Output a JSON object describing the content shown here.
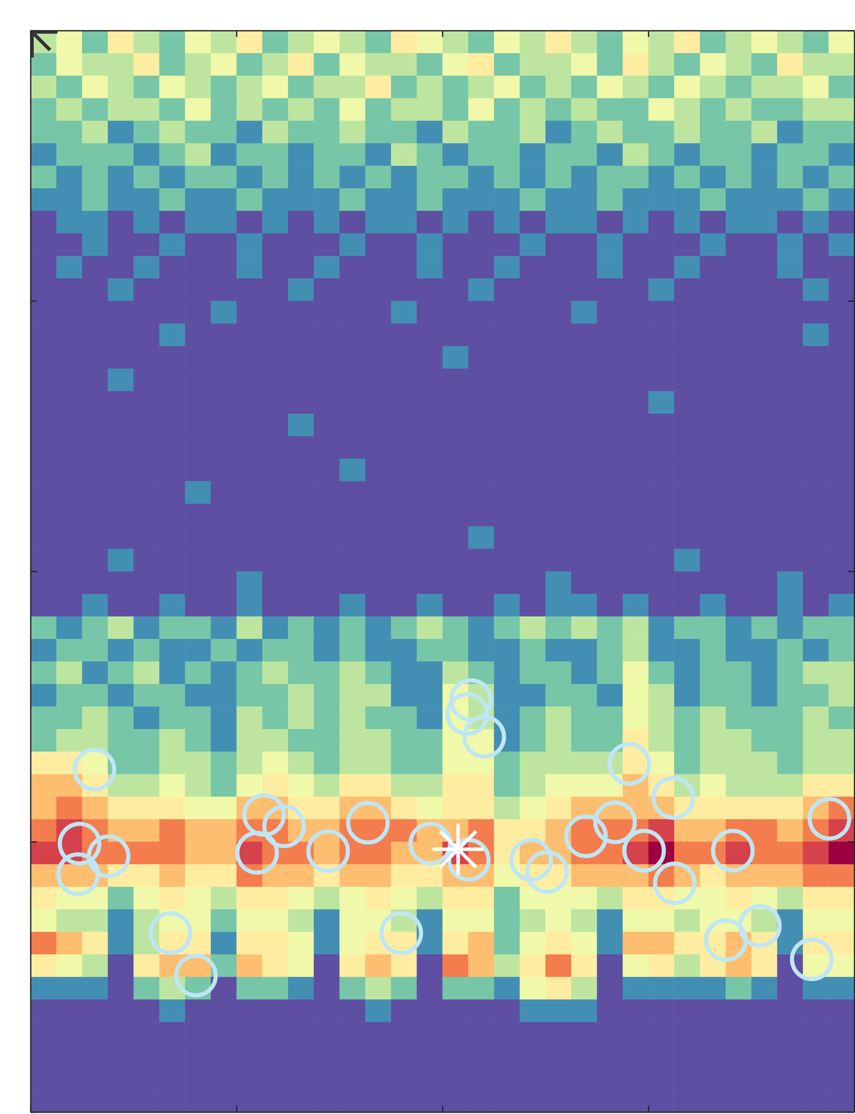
{
  "chart_data": {
    "type": "heatmap",
    "xlim": [
      0,
      4
    ],
    "ylim": [
      0,
      4
    ],
    "xticks": [
      0,
      1,
      2,
      3,
      4
    ],
    "yticks": [
      0,
      1,
      2,
      3,
      4
    ],
    "tick_labels": false,
    "zlim": [
      0,
      9
    ],
    "z": [
      [
        3,
        4,
        2,
        5,
        3,
        2,
        4,
        3,
        5,
        2,
        3,
        4,
        3,
        2,
        5,
        4,
        3,
        2,
        4,
        3,
        5,
        3,
        2,
        4,
        3,
        5,
        2,
        3,
        4,
        3,
        2,
        4
      ],
      [
        2,
        4,
        3,
        3,
        5,
        2,
        3,
        4,
        2,
        3,
        5,
        2,
        4,
        3,
        3,
        2,
        4,
        5,
        2,
        3,
        3,
        4,
        2,
        5,
        3,
        2,
        4,
        3,
        2,
        5,
        3,
        3
      ],
      [
        3,
        2,
        4,
        3,
        2,
        4,
        3,
        2,
        3,
        4,
        2,
        3,
        3,
        5,
        2,
        3,
        2,
        3,
        4,
        2,
        3,
        2,
        4,
        3,
        2,
        4,
        3,
        2,
        3,
        3,
        4,
        2
      ],
      [
        2,
        3,
        2,
        3,
        3,
        2,
        4,
        2,
        3,
        2,
        3,
        2,
        4,
        2,
        3,
        3,
        2,
        4,
        2,
        3,
        2,
        3,
        2,
        2,
        4,
        3,
        2,
        3,
        2,
        2,
        3,
        3
      ],
      [
        2,
        2,
        3,
        1,
        2,
        3,
        2,
        2,
        1,
        3,
        2,
        2,
        3,
        2,
        2,
        1,
        3,
        2,
        2,
        3,
        1,
        2,
        3,
        2,
        2,
        3,
        2,
        2,
        3,
        1,
        2,
        2
      ],
      [
        1,
        2,
        2,
        2,
        1,
        2,
        3,
        1,
        2,
        2,
        1,
        2,
        2,
        1,
        3,
        2,
        1,
        2,
        2,
        1,
        2,
        2,
        1,
        3,
        2,
        1,
        2,
        2,
        1,
        2,
        2,
        1
      ],
      [
        2,
        1,
        2,
        1,
        2,
        1,
        2,
        2,
        1,
        2,
        1,
        2,
        1,
        2,
        1,
        2,
        2,
        1,
        2,
        1,
        2,
        1,
        2,
        2,
        1,
        2,
        1,
        2,
        1,
        2,
        1,
        2
      ],
      [
        1,
        1,
        2,
        1,
        1,
        2,
        1,
        1,
        2,
        1,
        1,
        1,
        2,
        1,
        1,
        2,
        1,
        1,
        1,
        2,
        1,
        1,
        2,
        1,
        1,
        1,
        2,
        1,
        1,
        1,
        2,
        1
      ],
      [
        0,
        1,
        1,
        0,
        1,
        0,
        1,
        1,
        0,
        1,
        0,
        1,
        0,
        1,
        1,
        0,
        1,
        0,
        1,
        0,
        1,
        1,
        0,
        1,
        0,
        1,
        0,
        1,
        1,
        0,
        1,
        0
      ],
      [
        0,
        0,
        1,
        0,
        0,
        1,
        0,
        0,
        1,
        0,
        0,
        0,
        1,
        0,
        0,
        1,
        0,
        0,
        0,
        1,
        0,
        0,
        1,
        0,
        0,
        0,
        1,
        0,
        0,
        1,
        0,
        1
      ],
      [
        0,
        1,
        0,
        0,
        1,
        0,
        0,
        0,
        1,
        0,
        0,
        1,
        0,
        0,
        0,
        1,
        0,
        0,
        1,
        0,
        0,
        0,
        1,
        0,
        0,
        1,
        0,
        0,
        0,
        1,
        0,
        0
      ],
      [
        0,
        0,
        0,
        1,
        0,
        0,
        0,
        0,
        0,
        0,
        1,
        0,
        0,
        0,
        0,
        0,
        0,
        1,
        0,
        0,
        0,
        0,
        0,
        0,
        1,
        0,
        0,
        0,
        0,
        0,
        1,
        0
      ],
      [
        0,
        0,
        0,
        0,
        0,
        0,
        0,
        1,
        0,
        0,
        0,
        0,
        0,
        0,
        1,
        0,
        0,
        0,
        0,
        0,
        0,
        1,
        0,
        0,
        0,
        0,
        0,
        0,
        0,
        0,
        0,
        0
      ],
      [
        0,
        0,
        0,
        0,
        0,
        1,
        0,
        0,
        0,
        0,
        0,
        0,
        0,
        0,
        0,
        0,
        0,
        0,
        0,
        0,
        0,
        0,
        0,
        0,
        0,
        0,
        0,
        0,
        0,
        0,
        1,
        0
      ],
      [
        0,
        0,
        0,
        0,
        0,
        0,
        0,
        0,
        0,
        0,
        0,
        0,
        0,
        0,
        0,
        0,
        1,
        0,
        0,
        0,
        0,
        0,
        0,
        0,
        0,
        0,
        0,
        0,
        0,
        0,
        0,
        0
      ],
      [
        0,
        0,
        0,
        1,
        0,
        0,
        0,
        0,
        0,
        0,
        0,
        0,
        0,
        0,
        0,
        0,
        0,
        0,
        0,
        0,
        0,
        0,
        0,
        0,
        0,
        0,
        0,
        0,
        0,
        0,
        0,
        0
      ],
      [
        0,
        0,
        0,
        0,
        0,
        0,
        0,
        0,
        0,
        0,
        0,
        0,
        0,
        0,
        0,
        0,
        0,
        0,
        0,
        0,
        0,
        0,
        0,
        0,
        1,
        0,
        0,
        0,
        0,
        0,
        0,
        0
      ],
      [
        0,
        0,
        0,
        0,
        0,
        0,
        0,
        0,
        0,
        0,
        1,
        0,
        0,
        0,
        0,
        0,
        0,
        0,
        0,
        0,
        0,
        0,
        0,
        0,
        0,
        0,
        0,
        0,
        0,
        0,
        0,
        0
      ],
      [
        0,
        0,
        0,
        0,
        0,
        0,
        0,
        0,
        0,
        0,
        0,
        0,
        0,
        0,
        0,
        0,
        0,
        0,
        0,
        0,
        0,
        0,
        0,
        0,
        0,
        0,
        0,
        0,
        0,
        0,
        0,
        0
      ],
      [
        0,
        0,
        0,
        0,
        0,
        0,
        0,
        0,
        0,
        0,
        0,
        0,
        1,
        0,
        0,
        0,
        0,
        0,
        0,
        0,
        0,
        0,
        0,
        0,
        0,
        0,
        0,
        0,
        0,
        0,
        0,
        0
      ],
      [
        0,
        0,
        0,
        0,
        0,
        0,
        1,
        0,
        0,
        0,
        0,
        0,
        0,
        0,
        0,
        0,
        0,
        0,
        0,
        0,
        0,
        0,
        0,
        0,
        0,
        0,
        0,
        0,
        0,
        0,
        0,
        0
      ],
      [
        0,
        0,
        0,
        0,
        0,
        0,
        0,
        0,
        0,
        0,
        0,
        0,
        0,
        0,
        0,
        0,
        0,
        0,
        0,
        0,
        0,
        0,
        0,
        0,
        0,
        0,
        0,
        0,
        0,
        0,
        0,
        0
      ],
      [
        0,
        0,
        0,
        0,
        0,
        0,
        0,
        0,
        0,
        0,
        0,
        0,
        0,
        0,
        0,
        0,
        0,
        1,
        0,
        0,
        0,
        0,
        0,
        0,
        0,
        0,
        0,
        0,
        0,
        0,
        0,
        0
      ],
      [
        0,
        0,
        0,
        1,
        0,
        0,
        0,
        0,
        0,
        0,
        0,
        0,
        0,
        0,
        0,
        0,
        0,
        0,
        0,
        0,
        0,
        0,
        0,
        0,
        0,
        1,
        0,
        0,
        0,
        0,
        0,
        0
      ],
      [
        0,
        0,
        0,
        0,
        0,
        0,
        0,
        0,
        1,
        0,
        0,
        0,
        0,
        0,
        0,
        0,
        0,
        0,
        0,
        0,
        1,
        0,
        0,
        0,
        0,
        0,
        0,
        0,
        0,
        1,
        0,
        0
      ],
      [
        0,
        0,
        1,
        0,
        0,
        1,
        0,
        0,
        1,
        0,
        0,
        0,
        1,
        0,
        0,
        1,
        0,
        0,
        1,
        0,
        1,
        1,
        0,
        1,
        0,
        0,
        1,
        0,
        0,
        1,
        0,
        1
      ],
      [
        2,
        1,
        2,
        3,
        1,
        2,
        2,
        1,
        3,
        1,
        2,
        1,
        2,
        1,
        2,
        3,
        2,
        1,
        2,
        3,
        2,
        3,
        2,
        3,
        1,
        2,
        2,
        1,
        2,
        1,
        2,
        2
      ],
      [
        1,
        2,
        2,
        1,
        2,
        1,
        1,
        2,
        1,
        2,
        2,
        1,
        2,
        1,
        1,
        2,
        2,
        1,
        1,
        2,
        1,
        1,
        2,
        3,
        1,
        1,
        2,
        1,
        1,
        2,
        1,
        2
      ],
      [
        2,
        3,
        1,
        2,
        3,
        1,
        2,
        1,
        2,
        3,
        2,
        2,
        3,
        2,
        1,
        1,
        3,
        2,
        1,
        2,
        2,
        1,
        2,
        4,
        2,
        1,
        2,
        2,
        1,
        2,
        3,
        3
      ],
      [
        1,
        2,
        2,
        1,
        2,
        2,
        1,
        1,
        2,
        2,
        3,
        2,
        3,
        3,
        1,
        1,
        4,
        3,
        1,
        1,
        2,
        2,
        1,
        4,
        3,
        1,
        2,
        2,
        1,
        2,
        2,
        3
      ],
      [
        2,
        2,
        3,
        2,
        1,
        2,
        2,
        1,
        3,
        2,
        3,
        2,
        3,
        2,
        2,
        1,
        4,
        3,
        1,
        2,
        3,
        2,
        2,
        4,
        3,
        2,
        3,
        2,
        2,
        2,
        3,
        2
      ],
      [
        2,
        3,
        3,
        2,
        2,
        3,
        2,
        1,
        3,
        3,
        2,
        2,
        3,
        3,
        2,
        2,
        4,
        4,
        1,
        2,
        3,
        2,
        2,
        5,
        3,
        2,
        3,
        3,
        2,
        2,
        3,
        3
      ],
      [
        5,
        5,
        4,
        2,
        2,
        3,
        3,
        2,
        3,
        4,
        3,
        2,
        3,
        3,
        2,
        2,
        4,
        4,
        2,
        3,
        3,
        3,
        3,
        5,
        4,
        2,
        3,
        3,
        3,
        2,
        3,
        3
      ],
      [
        6,
        6,
        5,
        3,
        3,
        4,
        3,
        2,
        4,
        5,
        4,
        3,
        5,
        5,
        3,
        3,
        5,
        5,
        2,
        3,
        4,
        4,
        4,
        6,
        5,
        3,
        4,
        3,
        3,
        3,
        5,
        5
      ],
      [
        6,
        7,
        6,
        5,
        5,
        5,
        4,
        4,
        6,
        6,
        5,
        5,
        6,
        6,
        5,
        4,
        5,
        5,
        3,
        4,
        5,
        6,
        6,
        6,
        6,
        5,
        5,
        5,
        5,
        5,
        6,
        7
      ],
      [
        7,
        8,
        7,
        6,
        6,
        7,
        6,
        6,
        7,
        7,
        6,
        6,
        7,
        7,
        7,
        6,
        6,
        7,
        5,
        5,
        6,
        7,
        7,
        7,
        8,
        6,
        6,
        7,
        7,
        6,
        7,
        8
      ],
      [
        8,
        8,
        7,
        7,
        7,
        7,
        6,
        6,
        8,
        7,
        7,
        6,
        7,
        7,
        6,
        6,
        8,
        7,
        5,
        6,
        6,
        7,
        7,
        8,
        9,
        7,
        7,
        8,
        7,
        7,
        8,
        9
      ],
      [
        6,
        6,
        6,
        5,
        5,
        6,
        5,
        5,
        7,
        6,
        6,
        5,
        6,
        6,
        5,
        5,
        6,
        6,
        4,
        5,
        5,
        6,
        6,
        6,
        7,
        6,
        5,
        6,
        6,
        6,
        7,
        7
      ],
      [
        5,
        4,
        4,
        2,
        4,
        5,
        4,
        3,
        5,
        5,
        4,
        3,
        4,
        5,
        4,
        3,
        5,
        5,
        2,
        4,
        4,
        4,
        3,
        5,
        5,
        4,
        4,
        5,
        4,
        3,
        5,
        5
      ],
      [
        4,
        3,
        3,
        1,
        3,
        4,
        4,
        2,
        4,
        4,
        3,
        1,
        4,
        4,
        3,
        1,
        4,
        4,
        2,
        3,
        4,
        3,
        1,
        4,
        4,
        3,
        4,
        4,
        3,
        1,
        4,
        4
      ],
      [
        7,
        6,
        5,
        1,
        3,
        5,
        5,
        1,
        5,
        5,
        4,
        1,
        4,
        5,
        5,
        1,
        5,
        6,
        2,
        4,
        5,
        4,
        1,
        6,
        6,
        5,
        5,
        6,
        5,
        1,
        5,
        5
      ],
      [
        5,
        4,
        3,
        0,
        5,
        6,
        6,
        2,
        6,
        5,
        4,
        0,
        5,
        6,
        5,
        0,
        7,
        6,
        3,
        5,
        7,
        5,
        0,
        4,
        5,
        3,
        5,
        6,
        5,
        0,
        4,
        4
      ],
      [
        1,
        1,
        1,
        0,
        2,
        3,
        2,
        0,
        2,
        2,
        1,
        0,
        2,
        3,
        2,
        0,
        2,
        2,
        1,
        4,
        5,
        3,
        0,
        1,
        1,
        1,
        1,
        2,
        1,
        0,
        1,
        1
      ],
      [
        0,
        0,
        0,
        0,
        0,
        1,
        0,
        0,
        0,
        0,
        0,
        0,
        0,
        1,
        0,
        0,
        0,
        0,
        0,
        1,
        1,
        1,
        0,
        0,
        0,
        0,
        0,
        0,
        0,
        0,
        0,
        0
      ],
      [
        0,
        0,
        0,
        0,
        0,
        0,
        0,
        0,
        0,
        0,
        0,
        0,
        0,
        0,
        0,
        0,
        0,
        0,
        0,
        0,
        0,
        0,
        0,
        0,
        0,
        0,
        0,
        0,
        0,
        0,
        0,
        0
      ],
      [
        0,
        0,
        0,
        0,
        0,
        0,
        0,
        0,
        0,
        0,
        0,
        0,
        0,
        0,
        0,
        0,
        0,
        0,
        0,
        0,
        0,
        0,
        0,
        0,
        0,
        0,
        0,
        0,
        0,
        0,
        0,
        0
      ],
      [
        0,
        0,
        0,
        0,
        0,
        0,
        0,
        0,
        0,
        0,
        0,
        0,
        0,
        0,
        0,
        0,
        0,
        0,
        0,
        0,
        0,
        0,
        0,
        0,
        0,
        0,
        0,
        0,
        0,
        0,
        0,
        0
      ],
      [
        0,
        0,
        0,
        0,
        0,
        0,
        0,
        0,
        0,
        0,
        0,
        0,
        0,
        0,
        0,
        0,
        0,
        0,
        0,
        0,
        0,
        0,
        0,
        0,
        0,
        0,
        0,
        0,
        0,
        0,
        0,
        0
      ]
    ],
    "series": [
      {
        "type": "scatter",
        "marker": "circle",
        "color": "#bfe6f5",
        "x": [
          0.31,
          0.238,
          0.379,
          0.231,
          0.679,
          0.803,
          1.134,
          1.231,
          1.1,
          1.445,
          1.638,
          1.8,
          1.941,
          2.138,
          2.121,
          2.203,
          2.128,
          2.431,
          2.507,
          2.697,
          2.838,
          2.907,
          3.121,
          2.979,
          3.128,
          3.41,
          3.541,
          3.376,
          3.793,
          3.879
        ],
        "values": [
          1.267,
          0.993,
          0.946,
          0.88,
          0.662,
          0.505,
          1.099,
          1.057,
          0.959,
          0.965,
          1.07,
          0.662,
          0.993,
          1.524,
          1.472,
          1.388,
          0.933,
          0.933,
          0.888,
          1.02,
          1.072,
          1.288,
          1.162,
          0.967,
          0.846,
          0.967,
          0.689,
          0.636,
          0.565,
          1.085
        ]
      },
      {
        "type": "scatter",
        "marker": "asterisk",
        "color": "#ffffff",
        "x": [
          2.076
        ],
        "values": [
          0.972
        ]
      },
      {
        "type": "scatter",
        "marker": "asterisk",
        "color": "#333333",
        "x": [
          0.007
        ],
        "values": [
          3.995
        ]
      }
    ]
  }
}
